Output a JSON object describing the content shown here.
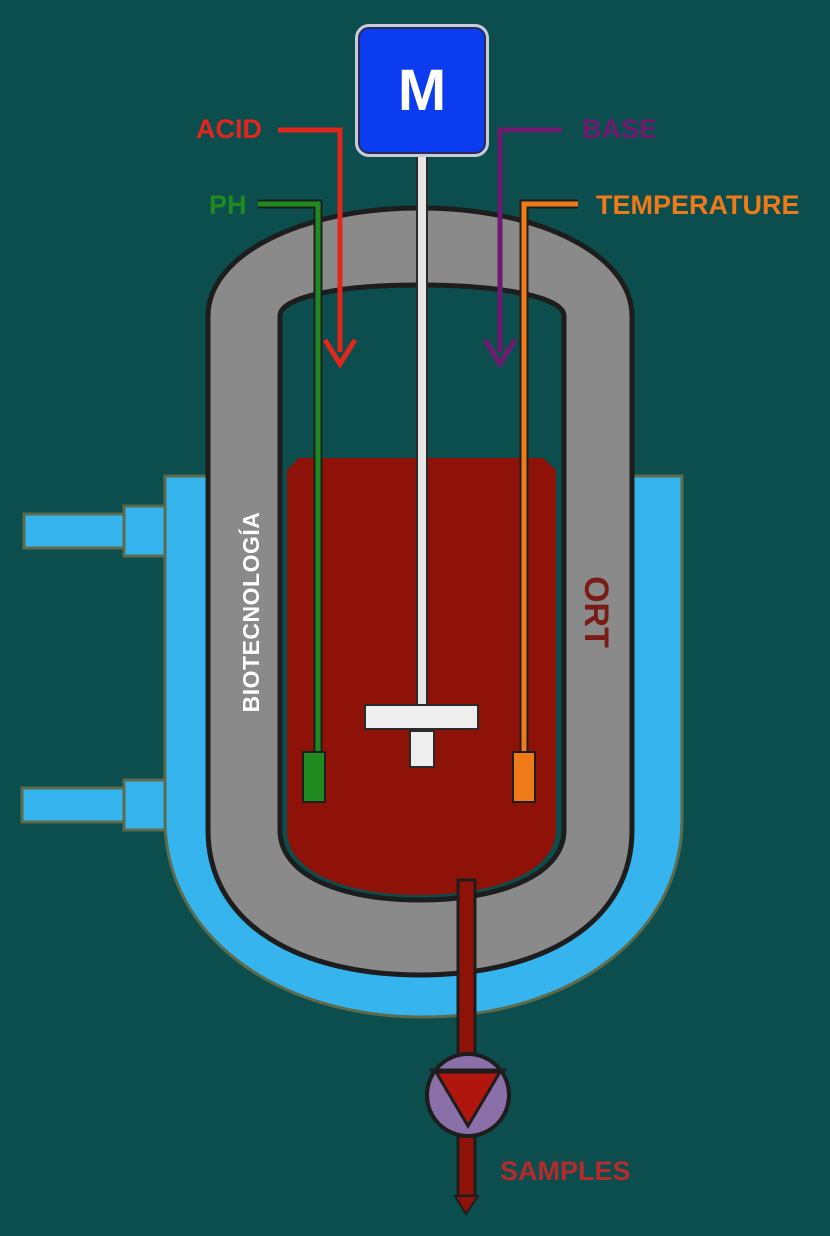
{
  "labels": {
    "acid": "ACID",
    "base": "BASE",
    "ph": "PH",
    "temperature": "TEMPERATURE",
    "motor": "M",
    "vessel": "BIOTECNOLOGÍA",
    "samples": "SAMPLES",
    "logo": "ORT"
  },
  "colors": {
    "background": "#0b4e4d",
    "water_jacket": "#35b4ee",
    "vessel_wall": "#8c8c8c",
    "broth": "#8f1208",
    "acid": "#e1261c",
    "base": "#6d1a6f",
    "ph": "#1f8a1f",
    "temperature": "#ee7a1a",
    "motor": "#0b3cf0",
    "pump": "#8a6fa8"
  }
}
